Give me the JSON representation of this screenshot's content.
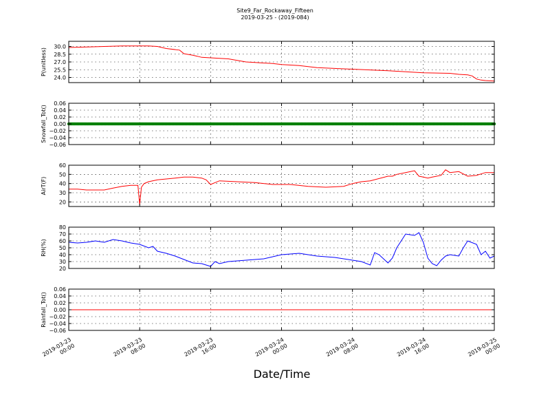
{
  "figure": {
    "title_line1": "Site9_Far_Rockaway_Fifteen",
    "title_line2": "2019-03-25 - (2019-084)",
    "xlabel": "Date/Time"
  },
  "chart_data": [
    {
      "type": "line",
      "ylabel": "P(unitless)",
      "color": "#ff0000",
      "ylim": [
        23.0,
        31.0
      ],
      "yticks": [
        24.0,
        25.5,
        27.0,
        28.5,
        30.0
      ],
      "ytick_labels": [
        "24.0",
        "25.5",
        "27.0",
        "28.5",
        "30.0"
      ],
      "grid": true,
      "series": [
        {
          "x": [
            0,
            2,
            4,
            6,
            8,
            9,
            10,
            11,
            12.5,
            13,
            14,
            14.5,
            15,
            16,
            18,
            19,
            20,
            21,
            23,
            24,
            26,
            28,
            32,
            36,
            40,
            43,
            44,
            45,
            45.5,
            46,
            46.5,
            47,
            48
          ],
          "y": [
            29.8,
            29.9,
            30.0,
            30.1,
            30.1,
            30.1,
            30.0,
            29.6,
            29.3,
            28.6,
            28.3,
            28.1,
            27.9,
            27.8,
            27.6,
            27.3,
            27.0,
            26.9,
            26.7,
            26.5,
            26.3,
            25.9,
            25.6,
            25.3,
            24.9,
            24.8,
            24.6,
            24.5,
            24.3,
            23.7,
            23.5,
            23.4,
            23.3
          ]
        }
      ],
      "xlim": [
        0,
        48
      ]
    },
    {
      "type": "line",
      "ylabel": "Snowfall_Tot()",
      "color": "#008000",
      "marker": "dot",
      "ylim": [
        -0.06,
        0.06
      ],
      "yticks": [
        -0.06,
        -0.04,
        -0.02,
        0.0,
        0.02,
        0.04,
        0.06
      ],
      "ytick_labels": [
        "−0.06",
        "−0.04",
        "−0.02",
        "0.00",
        "0.02",
        "0.04",
        "0.06"
      ],
      "grid": true,
      "series": [
        {
          "x": [
            0,
            48
          ],
          "y": [
            0.0,
            0.0
          ]
        }
      ],
      "xlim": [
        0,
        48
      ]
    },
    {
      "type": "line",
      "ylabel": "AirT(F)",
      "color": "#ff0000",
      "ylim": [
        15,
        60
      ],
      "yticks": [
        20,
        30,
        40,
        50,
        60
      ],
      "ytick_labels": [
        "20",
        "30",
        "40",
        "50",
        "60"
      ],
      "grid": true,
      "series": [
        {
          "x": [
            0,
            1,
            2,
            4,
            5,
            6,
            7,
            7.8,
            8.0,
            8.2,
            8.5,
            9,
            10,
            11,
            12,
            13,
            14,
            15,
            15.5,
            16,
            16.5,
            17,
            19,
            21,
            23,
            25,
            27,
            29,
            31,
            32,
            33,
            34,
            36,
            36.5,
            37,
            38,
            39,
            39.5,
            40,
            40.5,
            41,
            42,
            42.5,
            43,
            44,
            45,
            46,
            47,
            48
          ],
          "y": [
            34,
            34,
            33,
            33,
            35,
            37,
            38,
            38,
            17,
            36,
            40,
            42,
            44,
            45,
            46,
            47,
            47,
            46,
            44,
            39,
            41,
            43,
            42,
            41,
            39,
            39,
            37,
            36,
            37,
            40,
            42,
            43,
            48,
            48,
            50,
            52,
            54,
            48,
            47,
            46,
            47,
            49,
            55,
            52,
            53,
            48,
            49,
            52,
            52
          ]
        }
      ],
      "xlim": [
        0,
        48
      ]
    },
    {
      "type": "line",
      "ylabel": "RH(%)",
      "color": "#0000ff",
      "ylim": [
        20,
        80
      ],
      "yticks": [
        20,
        30,
        40,
        50,
        60,
        70,
        80
      ],
      "ytick_labels": [
        "20",
        "30",
        "40",
        "50",
        "60",
        "70",
        "80"
      ],
      "grid": true,
      "series": [
        {
          "x": [
            0,
            1,
            2,
            3,
            4,
            5,
            6,
            7,
            8,
            9,
            9.5,
            10,
            11,
            12,
            13,
            14,
            15,
            16,
            16.5,
            17,
            18,
            20,
            22,
            24,
            26,
            28,
            30,
            32,
            33,
            34,
            34.5,
            35,
            36,
            36.5,
            37,
            38,
            39,
            39.5,
            40,
            40.5,
            41,
            41.5,
            42,
            42.5,
            43,
            44,
            44.5,
            45,
            46,
            46.5,
            47,
            47.5,
            48
          ],
          "y": [
            58,
            57,
            58,
            60,
            58,
            62,
            60,
            57,
            55,
            50,
            52,
            45,
            42,
            38,
            33,
            28,
            27,
            23,
            30,
            27,
            30,
            32,
            34,
            40,
            42,
            38,
            36,
            32,
            30,
            25,
            43,
            40,
            28,
            35,
            50,
            70,
            68,
            72,
            58,
            35,
            27,
            24,
            32,
            38,
            40,
            38,
            50,
            60,
            55,
            40,
            45,
            35,
            38
          ]
        }
      ],
      "xlim": [
        0,
        48
      ]
    },
    {
      "type": "line",
      "ylabel": "Rainfall_Tot()",
      "color": "#ff0000",
      "ylim": [
        -0.06,
        0.06
      ],
      "yticks": [
        -0.06,
        -0.04,
        -0.02,
        0.0,
        0.02,
        0.04,
        0.06
      ],
      "ytick_labels": [
        "−0.06",
        "−0.04",
        "−0.02",
        "0.00",
        "0.02",
        "0.04",
        "0.06"
      ],
      "grid": true,
      "series": [
        {
          "x": [
            0,
            48
          ],
          "y": [
            0.0,
            0.0
          ]
        }
      ],
      "xlim": [
        0,
        48
      ]
    }
  ],
  "x_axis": {
    "ticks": [
      0,
      8,
      16,
      24,
      32,
      40,
      48
    ],
    "tick_labels": [
      [
        "2019-03-23",
        "00:00"
      ],
      [
        "2019-03-23",
        "08:00"
      ],
      [
        "2019-03-23",
        "16:00"
      ],
      [
        "2019-03-24",
        "00:00"
      ],
      [
        "2019-03-24",
        "08:00"
      ],
      [
        "2019-03-24",
        "16:00"
      ],
      [
        "2019-03-25",
        "00:00"
      ]
    ]
  }
}
